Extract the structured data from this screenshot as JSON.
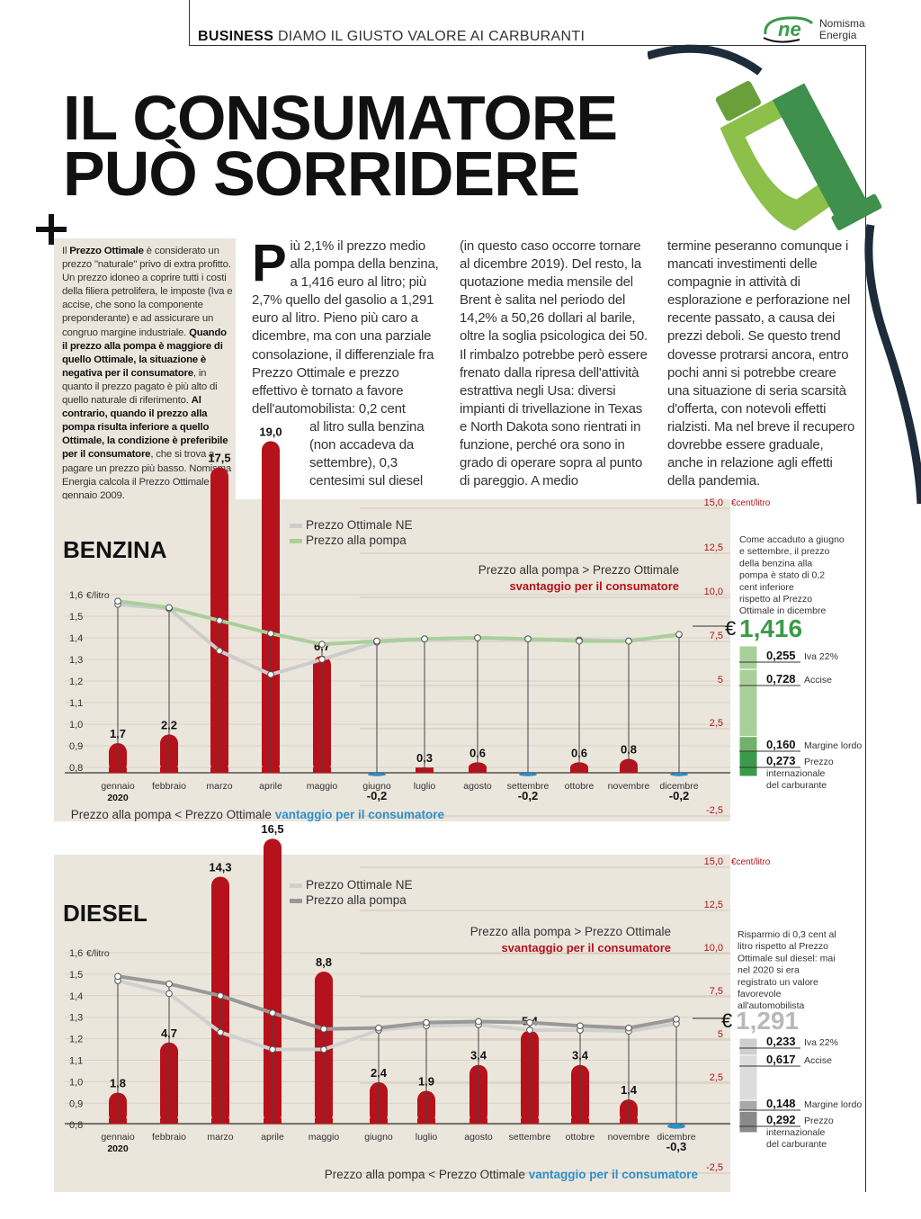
{
  "header": {
    "kicker_bold": "BUSINESS",
    "kicker_rest": " DIAMO IL GIUSTO VALORE AI CARBURANTI",
    "logo_mark": "ne",
    "logo_line1": "Nomisma",
    "logo_line2": "Energia"
  },
  "title": {
    "line1": "IL CONSUMATORE",
    "line2": "PUÒ SORRIDERE"
  },
  "sidebar": {
    "parts": [
      {
        "t": "Il ",
        "b": false
      },
      {
        "t": "Prezzo Ottimale",
        "b": true
      },
      {
        "t": " è considerato un prezzo \"naturale\" privo di extra profitto. Un prezzo idoneo a coprire tutti i costi della filiera petrolifera, le imposte (Iva e accise, che sono la componente preponderante) e ad assicurare un congruo margine industriale. ",
        "b": false
      },
      {
        "t": "Quando il prezzo alla pompa è maggiore di quello Ottimale, la situazione è negativa per il consumatore",
        "b": true
      },
      {
        "t": ", in quanto il prezzo pagato è più alto di quello naturale di riferimento. ",
        "b": false
      },
      {
        "t": "Al contrario, quando il prezzo alla pompa risulta inferiore a quello Ottimale, la condizione è preferibile per il consumatore",
        "b": true
      },
      {
        "t": ", che si trova a pagare un prezzo più basso. Nomisma Energia calcola il Prezzo Ottimale dal gennaio 2009.",
        "b": false
      }
    ]
  },
  "article": {
    "dropcap": "P",
    "col1_a": "iù 2,1% il prezzo medio alla pompa della benzina, a 1,416 euro al litro; più 2,7% quello del gasolio a 1,291 euro al litro. Pieno più caro a dicembre, ma con una parziale consolazione, il differenziale fra Prezzo Ottimale e prezzo effettivo è tornato a favore dell'automobilista: 0,2 cent",
    "col1_b": "al litro sulla benzina (non accadeva da settembre), 0,3 centesimi sul diesel",
    "col2": "(in questo caso occorre tornare al dicembre 2019). Del resto, la quotazione media mensile del Brent è salita nel periodo del 14,2% a 50,26 dollari al barile, oltre la soglia psicologica dei 50. Il rimbalzo potrebbe però essere frenato dalla ripresa dell'attività estrattiva negli Usa: diversi impianti di trivellazione in Texas e North Dakota sono rientrati in funzione, perché ora sono in grado di operare sopra al punto di pareggio. A medio",
    "col3": "termine peseranno comunque i mancati investimenti delle compagnie in attività di esplorazione e perforazione nel recente passato, a causa dei prezzi deboli. Se questo trend dovesse protrarsi ancora, entro pochi anni si potrebbe creare una situazione di seria scarsità d'offerta, con notevoli effetti rialzisti. Ma nel breve il recupero dovrebbe essere graduale, anche in relazione agli effetti della pandemia."
  },
  "chart_data": [
    {
      "type": "bar",
      "title": "BENZINA",
      "categories": [
        "gennaio",
        "febbraio",
        "marzo",
        "aprile",
        "maggio",
        "giugno",
        "luglio",
        "agosto",
        "settembre",
        "ottobre",
        "novembre",
        "dicembre"
      ],
      "year_label": "2020",
      "bar_series": {
        "name": "Prezzo alla pompa − Prezzo Ottimale",
        "unit": "€cent/litro",
        "values": [
          1.7,
          2.2,
          17.5,
          19.0,
          6.7,
          -0.2,
          0.3,
          0.6,
          -0.2,
          0.6,
          0.8,
          -0.2
        ],
        "labels": [
          "1,7",
          "2,2",
          "17,5",
          "19,0",
          "6,7",
          "-0,2",
          "0,3",
          "0,6",
          "-0,2",
          "0,6",
          "0,8",
          "-0,2"
        ]
      },
      "line_series": [
        {
          "name": "Prezzo Ottimale NE",
          "color": "#cccccc",
          "values": [
            1.555,
            1.535,
            1.34,
            1.23,
            1.3,
            1.38,
            1.395,
            1.4,
            1.395,
            1.39,
            1.385,
            1.415
          ]
        },
        {
          "name": "Prezzo alla pompa",
          "color": "#a9cf9b",
          "values": [
            1.57,
            1.54,
            1.48,
            1.42,
            1.37,
            1.385,
            1.395,
            1.4,
            1.395,
            1.385,
            1.385,
            1.416
          ]
        }
      ],
      "left_axis": {
        "unit": "€/litro",
        "ticks": [
          "1,6",
          "1,5",
          "1,4",
          "1,3",
          "1,2",
          "1,1",
          "1,0",
          "0,9",
          "0,8"
        ],
        "range": [
          0.8,
          1.6
        ]
      },
      "right_axis": {
        "unit": "€cent/litro",
        "ticks": [
          "15,0",
          "12,5",
          "10,0",
          "7,5",
          "5",
          "2,5",
          "-2,5"
        ],
        "range": [
          -2.5,
          15
        ]
      },
      "legend": [
        "Prezzo Ottimale NE",
        "Prezzo alla pompa"
      ],
      "annot_top": "Prezzo alla pompa > Prezzo Ottimale",
      "annot_top_b": "svantaggio per il consumatore",
      "annot_bottom": "Prezzo alla pompa < Prezzo Ottimale ",
      "annot_bottom_b": "vantaggio per il consumatore",
      "side_note": "Come accaduto a giugno e settembre, il prezzo della benzina alla pompa è stato di 0,2 cent inferiore rispetto al Prezzo Ottimale in dicembre",
      "price": "1,416",
      "currency": "€",
      "components": [
        {
          "value": "0,255",
          "label": "Iva 22%"
        },
        {
          "value": "0,728",
          "label": "Accise"
        },
        {
          "value": "0,160",
          "label": "Margine lordo"
        },
        {
          "value": "0,273",
          "label": "Prezzo internazionale del carburante"
        }
      ]
    },
    {
      "type": "bar",
      "title": "DIESEL",
      "categories": [
        "gennaio",
        "febbraio",
        "marzo",
        "aprile",
        "maggio",
        "giugno",
        "luglio",
        "agosto",
        "settembre",
        "ottobre",
        "novembre",
        "dicembre"
      ],
      "year_label": "2020",
      "bar_series": {
        "name": "Prezzo alla pompa − Prezzo Ottimale",
        "unit": "€cent/litro",
        "values": [
          1.8,
          4.7,
          14.3,
          16.5,
          8.8,
          2.4,
          1.9,
          3.4,
          5.4,
          3.4,
          1.4,
          -0.3
        ],
        "labels": [
          "1,8",
          "4,7",
          "14,3",
          "16,5",
          "8,8",
          "2,4",
          "1,9",
          "3,4",
          "5,4",
          "3,4",
          "1,4",
          "-0,3"
        ]
      },
      "line_series": [
        {
          "name": "Prezzo Ottimale NE",
          "color": "#d0d0d0",
          "values": [
            1.47,
            1.41,
            1.23,
            1.15,
            1.15,
            1.24,
            1.26,
            1.265,
            1.24,
            1.24,
            1.235,
            1.27
          ]
        },
        {
          "name": "Prezzo alla pompa",
          "color": "#999999",
          "values": [
            1.49,
            1.455,
            1.4,
            1.32,
            1.245,
            1.25,
            1.275,
            1.28,
            1.275,
            1.26,
            1.25,
            1.291
          ]
        }
      ],
      "left_axis": {
        "unit": "€/litro",
        "ticks": [
          "1,6",
          "1,5",
          "1,4",
          "1,3",
          "1,2",
          "1,1",
          "1,0",
          "0,9",
          "0,8"
        ],
        "range": [
          0.8,
          1.6
        ]
      },
      "right_axis": {
        "unit": "€cent/litro",
        "ticks": [
          "15,0",
          "12,5",
          "10,0",
          "7,5",
          "5",
          "2,5",
          "-2,5"
        ],
        "range": [
          -2.5,
          15
        ]
      },
      "legend": [
        "Prezzo Ottimale NE",
        "Prezzo alla pompa"
      ],
      "annot_top": "Prezzo alla pompa > Prezzo Ottimale",
      "annot_top_b": "svantaggio per il consumatore",
      "annot_bottom": "Prezzo alla pompa < Prezzo Ottimale ",
      "annot_bottom_b": "vantaggio per il consumatore",
      "side_note": "Risparmio di 0,3 cent al litro rispetto al Prezzo Ottimale sul diesel: mai nel 2020 si era registrato un valore favorevole all'automobilista",
      "price": "1,291",
      "currency": "€",
      "components": [
        {
          "value": "0,233",
          "label": "Iva 22%"
        },
        {
          "value": "0,617",
          "label": "Accise"
        },
        {
          "value": "0,148",
          "label": "Margine lordo"
        },
        {
          "value": "0,292",
          "label": "Prezzo internazionale del carburante"
        }
      ]
    }
  ],
  "colors": {
    "bar": "#b5121b",
    "bar_negative": "#2f8fc9",
    "benzina_accent": "#3b9a4a",
    "diesel_accent": "#b9b9b9",
    "svantaggio": "#b5121b",
    "vantaggio": "#2f8fc9",
    "pump_green": "#7fb843",
    "hose": "#1d2b3a"
  }
}
